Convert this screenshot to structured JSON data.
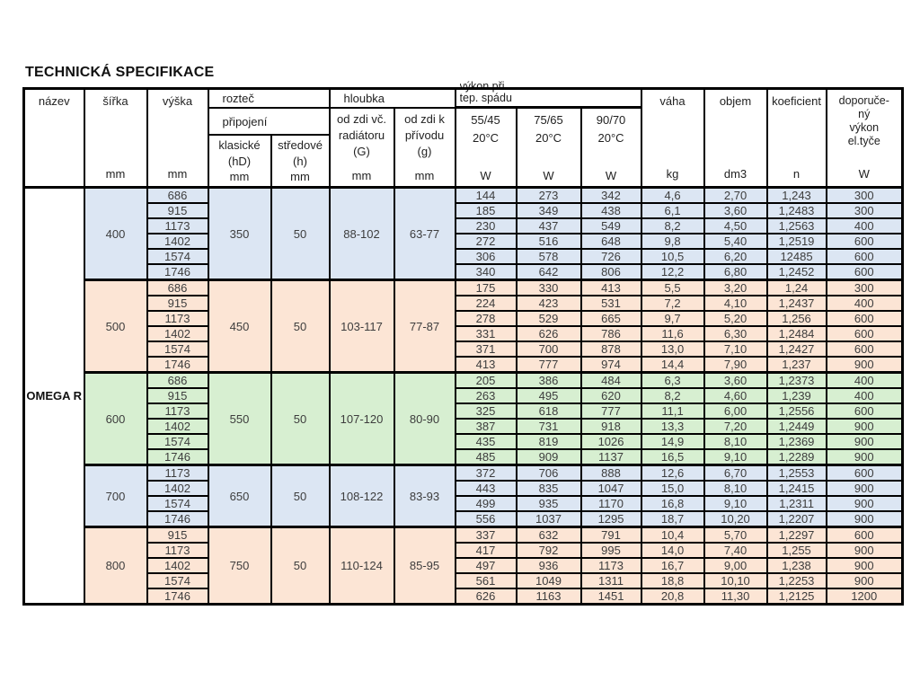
{
  "page": {
    "title": "TECHNICKÁ SPECIFIKACE"
  },
  "colors": {
    "group_blue": "#dce6f3",
    "group_peach": "#fce5d5",
    "group_green": "#d7efd1",
    "border": "#000000",
    "data_text": "#3d3d3d"
  },
  "table": {
    "product_name": "OMEGA R",
    "header": {
      "nazev": {
        "label": "název"
      },
      "sirka": {
        "label": "šířka",
        "unit": "mm"
      },
      "vyska": {
        "label": "výška",
        "unit": "mm"
      },
      "roztec": {
        "group": "rozteč",
        "subgroup": "připojení",
        "klasicke": {
          "lines": [
            "klasické",
            "(hD)"
          ],
          "unit": "mm"
        },
        "stredove": {
          "lines": [
            "středové",
            "(h)"
          ],
          "unit": "mm"
        }
      },
      "hloubka": {
        "group": "hloubka",
        "od_zdi_radiator": {
          "lines": [
            "od zdi  vč.",
            "radiátoru",
            "(G)"
          ],
          "unit": "mm"
        },
        "od_zdi_privod": {
          "lines": [
            "od zdi  k",
            "přívodu",
            "(g)"
          ],
          "unit": "mm"
        }
      },
      "vykon": {
        "group_lines": [
          "výkon při",
          "tep. spádu"
        ],
        "v5545": {
          "lines": [
            "55/45",
            "20°C"
          ],
          "unit": "W"
        },
        "v7565": {
          "lines": [
            "75/65",
            "20°C"
          ],
          "unit": "W"
        },
        "v9070": {
          "lines": [
            "90/70",
            "20°C"
          ],
          "unit": "W"
        }
      },
      "vaha": {
        "label": "váha",
        "unit": "kg"
      },
      "objem": {
        "label": "objem",
        "unit": "dm3"
      },
      "koeficient": {
        "label": "koeficient",
        "unit": "n"
      },
      "doporuceny": {
        "lines": [
          "doporuče-",
          "ný",
          "výkon",
          "el.tyče"
        ],
        "unit": "W"
      }
    },
    "groups": [
      {
        "sirka": "400",
        "klasicke": "350",
        "stredove": "50",
        "hloubka_radiator": "88-102",
        "hloubka_privod": "63-77",
        "color": "#dce6f3",
        "rows": [
          [
            "686",
            "144",
            "273",
            "342",
            "4,6",
            "2,70",
            "1,243",
            "300"
          ],
          [
            "915",
            "185",
            "349",
            "438",
            "6,1",
            "3,60",
            "1,2483",
            "300"
          ],
          [
            "1173",
            "230",
            "437",
            "549",
            "8,2",
            "4,50",
            "1,2563",
            "400"
          ],
          [
            "1402",
            "272",
            "516",
            "648",
            "9,8",
            "5,40",
            "1,2519",
            "600"
          ],
          [
            "1574",
            "306",
            "578",
            "726",
            "10,5",
            "6,20",
            "12485",
            "600"
          ],
          [
            "1746",
            "340",
            "642",
            "806",
            "12,2",
            "6,80",
            "1,2452",
            "600"
          ]
        ]
      },
      {
        "sirka": "500",
        "klasicke": "450",
        "stredove": "50",
        "hloubka_radiator": "103-117",
        "hloubka_privod": "77-87",
        "color": "#fce5d5",
        "rows": [
          [
            "686",
            "175",
            "330",
            "413",
            "5,5",
            "3,20",
            "1,24",
            "300"
          ],
          [
            "915",
            "224",
            "423",
            "531",
            "7,2",
            "4,10",
            "1,2437",
            "400"
          ],
          [
            "1173",
            "278",
            "529",
            "665",
            "9,7",
            "5,20",
            "1,256",
            "600"
          ],
          [
            "1402",
            "331",
            "626",
            "786",
            "11,6",
            "6,30",
            "1,2484",
            "600"
          ],
          [
            "1574",
            "371",
            "700",
            "878",
            "13,0",
            "7,10",
            "1,2427",
            "600"
          ],
          [
            "1746",
            "413",
            "777",
            "974",
            "14,4",
            "7,90",
            "1,237",
            "900"
          ]
        ]
      },
      {
        "sirka": "600",
        "klasicke": "550",
        "stredove": "50",
        "hloubka_radiator": "107-120",
        "hloubka_privod": "80-90",
        "color": "#d7efd1",
        "rows": [
          [
            "686",
            "205",
            "386",
            "484",
            "6,3",
            "3,60",
            "1,2373",
            "400"
          ],
          [
            "915",
            "263",
            "495",
            "620",
            "8,2",
            "4,60",
            "1,239",
            "400"
          ],
          [
            "1173",
            "325",
            "618",
            "777",
            "11,1",
            "6,00",
            "1,2556",
            "600"
          ],
          [
            "1402",
            "387",
            "731",
            "918",
            "13,3",
            "7,20",
            "1,2449",
            "900"
          ],
          [
            "1574",
            "435",
            "819",
            "1026",
            "14,9",
            "8,10",
            "1,2369",
            "900"
          ],
          [
            "1746",
            "485",
            "909",
            "1137",
            "16,5",
            "9,10",
            "1,2289",
            "900"
          ]
        ]
      },
      {
        "sirka": "700",
        "klasicke": "650",
        "stredove": "50",
        "hloubka_radiator": "108-122",
        "hloubka_privod": "83-93",
        "color": "#dce6f3",
        "rows": [
          [
            "1173",
            "372",
            "706",
            "888",
            "12,6",
            "6,70",
            "1,2553",
            "600"
          ],
          [
            "1402",
            "443",
            "835",
            "1047",
            "15,0",
            "8,10",
            "1,2415",
            "900"
          ],
          [
            "1574",
            "499",
            "935",
            "1170",
            "16,8",
            "9,10",
            "1,2311",
            "900"
          ],
          [
            "1746",
            "556",
            "1037",
            "1295",
            "18,7",
            "10,20",
            "1,2207",
            "900"
          ]
        ]
      },
      {
        "sirka": "800",
        "klasicke": "750",
        "stredove": "50",
        "hloubka_radiator": "110-124",
        "hloubka_privod": "85-95",
        "color": "#fce5d5",
        "rows": [
          [
            "915",
            "337",
            "632",
            "791",
            "10,4",
            "5,70",
            "1,2297",
            "600"
          ],
          [
            "1173",
            "417",
            "792",
            "995",
            "14,0",
            "7,40",
            "1,255",
            "900"
          ],
          [
            "1402",
            "497",
            "936",
            "1173",
            "16,7",
            "9,00",
            "1,238",
            "900"
          ],
          [
            "1574",
            "561",
            "1049",
            "1311",
            "18,8",
            "10,10",
            "1,2253",
            "900"
          ],
          [
            "1746",
            "626",
            "1163",
            "1451",
            "20,8",
            "11,30",
            "1,2125",
            "1200"
          ]
        ]
      }
    ]
  }
}
